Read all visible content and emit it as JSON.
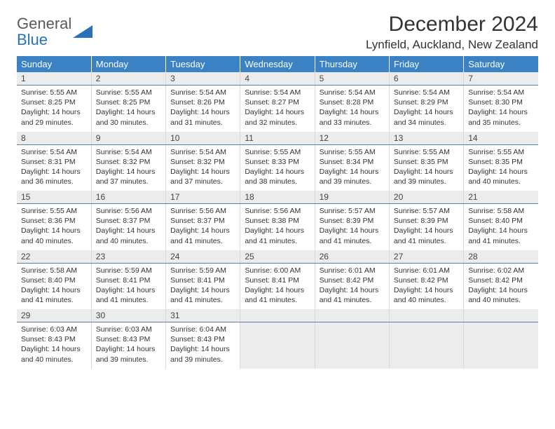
{
  "logo": {
    "line1": "General",
    "line2": "Blue",
    "text_color": "#5a5a5a",
    "accent_color": "#2a72b5"
  },
  "header": {
    "month_title": "December 2024",
    "location": "Lynfield, Auckland, New Zealand"
  },
  "calendar": {
    "header_bg": "#3a82c4",
    "header_text_color": "#ffffff",
    "daynum_bg": "#ececec",
    "daynum_border": "#5c7ea3",
    "cell_border": "#d9d9d9",
    "body_bg": "#ffffff",
    "empty_bg": "#ececec",
    "font_size_header": 13,
    "font_size_daynum": 12,
    "font_size_body": 10.5,
    "days_of_week": [
      "Sunday",
      "Monday",
      "Tuesday",
      "Wednesday",
      "Thursday",
      "Friday",
      "Saturday"
    ],
    "weeks": [
      [
        {
          "n": 1,
          "sunrise": "5:55 AM",
          "sunset": "8:25 PM",
          "dlh": 14,
          "dlm": 29
        },
        {
          "n": 2,
          "sunrise": "5:55 AM",
          "sunset": "8:25 PM",
          "dlh": 14,
          "dlm": 30
        },
        {
          "n": 3,
          "sunrise": "5:54 AM",
          "sunset": "8:26 PM",
          "dlh": 14,
          "dlm": 31
        },
        {
          "n": 4,
          "sunrise": "5:54 AM",
          "sunset": "8:27 PM",
          "dlh": 14,
          "dlm": 32
        },
        {
          "n": 5,
          "sunrise": "5:54 AM",
          "sunset": "8:28 PM",
          "dlh": 14,
          "dlm": 33
        },
        {
          "n": 6,
          "sunrise": "5:54 AM",
          "sunset": "8:29 PM",
          "dlh": 14,
          "dlm": 34
        },
        {
          "n": 7,
          "sunrise": "5:54 AM",
          "sunset": "8:30 PM",
          "dlh": 14,
          "dlm": 35
        }
      ],
      [
        {
          "n": 8,
          "sunrise": "5:54 AM",
          "sunset": "8:31 PM",
          "dlh": 14,
          "dlm": 36
        },
        {
          "n": 9,
          "sunrise": "5:54 AM",
          "sunset": "8:32 PM",
          "dlh": 14,
          "dlm": 37
        },
        {
          "n": 10,
          "sunrise": "5:54 AM",
          "sunset": "8:32 PM",
          "dlh": 14,
          "dlm": 37
        },
        {
          "n": 11,
          "sunrise": "5:55 AM",
          "sunset": "8:33 PM",
          "dlh": 14,
          "dlm": 38
        },
        {
          "n": 12,
          "sunrise": "5:55 AM",
          "sunset": "8:34 PM",
          "dlh": 14,
          "dlm": 39
        },
        {
          "n": 13,
          "sunrise": "5:55 AM",
          "sunset": "8:35 PM",
          "dlh": 14,
          "dlm": 39
        },
        {
          "n": 14,
          "sunrise": "5:55 AM",
          "sunset": "8:35 PM",
          "dlh": 14,
          "dlm": 40
        }
      ],
      [
        {
          "n": 15,
          "sunrise": "5:55 AM",
          "sunset": "8:36 PM",
          "dlh": 14,
          "dlm": 40
        },
        {
          "n": 16,
          "sunrise": "5:56 AM",
          "sunset": "8:37 PM",
          "dlh": 14,
          "dlm": 40
        },
        {
          "n": 17,
          "sunrise": "5:56 AM",
          "sunset": "8:37 PM",
          "dlh": 14,
          "dlm": 41
        },
        {
          "n": 18,
          "sunrise": "5:56 AM",
          "sunset": "8:38 PM",
          "dlh": 14,
          "dlm": 41
        },
        {
          "n": 19,
          "sunrise": "5:57 AM",
          "sunset": "8:39 PM",
          "dlh": 14,
          "dlm": 41
        },
        {
          "n": 20,
          "sunrise": "5:57 AM",
          "sunset": "8:39 PM",
          "dlh": 14,
          "dlm": 41
        },
        {
          "n": 21,
          "sunrise": "5:58 AM",
          "sunset": "8:40 PM",
          "dlh": 14,
          "dlm": 41
        }
      ],
      [
        {
          "n": 22,
          "sunrise": "5:58 AM",
          "sunset": "8:40 PM",
          "dlh": 14,
          "dlm": 41
        },
        {
          "n": 23,
          "sunrise": "5:59 AM",
          "sunset": "8:41 PM",
          "dlh": 14,
          "dlm": 41
        },
        {
          "n": 24,
          "sunrise": "5:59 AM",
          "sunset": "8:41 PM",
          "dlh": 14,
          "dlm": 41
        },
        {
          "n": 25,
          "sunrise": "6:00 AM",
          "sunset": "8:41 PM",
          "dlh": 14,
          "dlm": 41
        },
        {
          "n": 26,
          "sunrise": "6:01 AM",
          "sunset": "8:42 PM",
          "dlh": 14,
          "dlm": 41
        },
        {
          "n": 27,
          "sunrise": "6:01 AM",
          "sunset": "8:42 PM",
          "dlh": 14,
          "dlm": 40
        },
        {
          "n": 28,
          "sunrise": "6:02 AM",
          "sunset": "8:42 PM",
          "dlh": 14,
          "dlm": 40
        }
      ],
      [
        {
          "n": 29,
          "sunrise": "6:03 AM",
          "sunset": "8:43 PM",
          "dlh": 14,
          "dlm": 40
        },
        {
          "n": 30,
          "sunrise": "6:03 AM",
          "sunset": "8:43 PM",
          "dlh": 14,
          "dlm": 39
        },
        {
          "n": 31,
          "sunrise": "6:04 AM",
          "sunset": "8:43 PM",
          "dlh": 14,
          "dlm": 39
        },
        null,
        null,
        null,
        null
      ]
    ],
    "labels": {
      "sunrise": "Sunrise:",
      "sunset": "Sunset:",
      "daylight_prefix": "Daylight:",
      "hours_word": "hours",
      "and_word": "and",
      "minutes_word": "minutes."
    }
  }
}
